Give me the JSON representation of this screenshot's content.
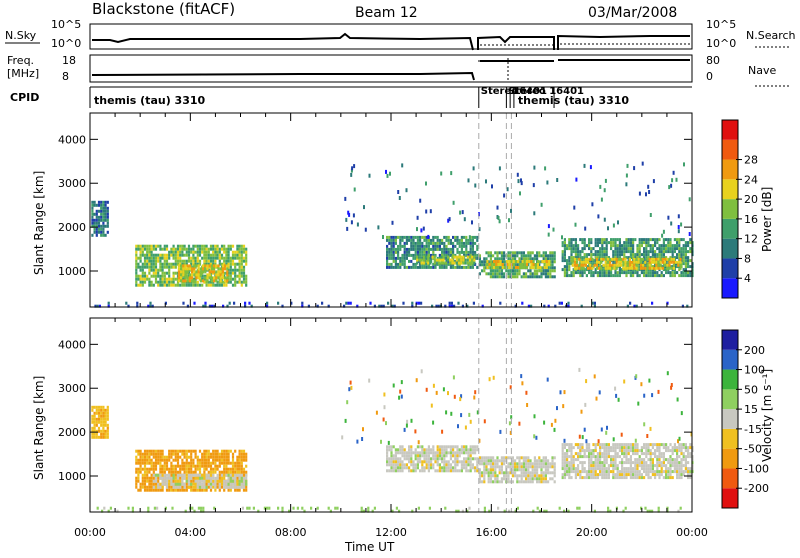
{
  "header": {
    "station": "Blackstone (fitACF)",
    "beam": "Beam 12",
    "date": "03/Mar/2008"
  },
  "strip_labels": {
    "nsky": "N.Sky",
    "freq_line1": "Freq.",
    "freq_line2": "[MHz]",
    "cpid": "CPID",
    "nsearch": "N.Search",
    "nave": "Nave",
    "nsky_ticks": [
      "10^5",
      "10^0"
    ],
    "nsearch_ticks": [
      "10^5",
      "10^0"
    ],
    "freq_ticks": [
      "18",
      "8"
    ],
    "nave_ticks": [
      "80",
      "0"
    ]
  },
  "cpid_segments": [
    {
      "label": "themis (tau) 3310",
      "start": 0.0,
      "end": 15.5
    },
    {
      "label": "Stereo",
      "start": 15.5,
      "end": 16.6
    },
    {
      "label": "Stereo 16401",
      "start": 16.6,
      "end": 16.75
    },
    {
      "label": "16401",
      "start": 16.75,
      "end": 16.9
    },
    {
      "label": "themis (tau) 3310",
      "start": 16.9,
      "end": 24.0
    }
  ],
  "colors": {
    "power_scale": [
      "#1a1aff",
      "#1f3fa8",
      "#2c7a7a",
      "#3f9f6b",
      "#7fbf3f",
      "#e8d21e",
      "#f09a10",
      "#f05a10",
      "#e01010"
    ],
    "velocity_scale": [
      "#e01010",
      "#f05a10",
      "#f09a10",
      "#f0c020",
      "#c8c8c0",
      "#8fd060",
      "#3cb43c",
      "#2a64c8",
      "#1f1fa0"
    ],
    "ground_scatter": "#b8b8b0"
  },
  "power_colorbar": {
    "label": "Power [dB]",
    "ticks": [
      "4",
      "8",
      "12",
      "16",
      "20",
      "24",
      "28"
    ]
  },
  "velocity_colorbar": {
    "label": "Velocity [m s⁻¹]",
    "ticks": [
      "-200",
      "-100",
      "-50",
      "-15",
      "15",
      "50",
      "100",
      "200"
    ]
  },
  "chart_data": [
    {
      "type": "heatmap",
      "panel": "power",
      "ylabel": "Slant Range [km]",
      "xlabel": "",
      "xlim": [
        0,
        24
      ],
      "ylim": [
        180,
        4600
      ],
      "yticks": [
        "1000",
        "2000",
        "3000",
        "4000"
      ],
      "xticks": [
        "00:00",
        "04:00",
        "08:00",
        "12:00",
        "16:00",
        "20:00",
        "00:00"
      ],
      "regions": [
        {
          "t0": 0.05,
          "t1": 0.7,
          "r0": 1800,
          "r1": 2600,
          "value": 10
        },
        {
          "t0": 1.8,
          "t1": 6.2,
          "r0": 650,
          "r1": 1600,
          "value": 17
        },
        {
          "t0": 3.5,
          "t1": 5.5,
          "r0": 800,
          "r1": 1150,
          "value": 22
        },
        {
          "t0": 11.8,
          "t1": 15.4,
          "r0": 1100,
          "r1": 1800,
          "value": 12
        },
        {
          "t0": 13.0,
          "t1": 15.3,
          "r0": 1150,
          "r1": 1350,
          "value": 19
        },
        {
          "t0": 15.5,
          "t1": 18.5,
          "r0": 850,
          "r1": 1450,
          "value": 14
        },
        {
          "t0": 15.8,
          "t1": 18.3,
          "r0": 1050,
          "r1": 1250,
          "value": 21
        },
        {
          "t0": 18.8,
          "t1": 24.0,
          "r0": 900,
          "r1": 1750,
          "value": 13
        },
        {
          "t0": 19.2,
          "t1": 23.5,
          "r0": 1050,
          "r1": 1300,
          "value": 22
        },
        {
          "t0": 0.0,
          "t1": 24.0,
          "r0": 200,
          "r1": 300,
          "value": 6
        }
      ]
    },
    {
      "type": "heatmap",
      "panel": "velocity",
      "ylabel": "Slant Range [km]",
      "xlabel": "Time UT",
      "xlim": [
        0,
        24
      ],
      "ylim": [
        180,
        4600
      ],
      "yticks": [
        "1000",
        "2000",
        "3000",
        "4000"
      ],
      "xticks": [
        "00:00",
        "04:00",
        "08:00",
        "12:00",
        "16:00",
        "20:00",
        "00:00"
      ],
      "regions": [
        {
          "t0": 0.05,
          "t1": 0.7,
          "r0": 1900,
          "r1": 2600,
          "value": -40
        },
        {
          "t0": 1.8,
          "t1": 6.2,
          "r0": 650,
          "r1": 1600,
          "value": -60
        },
        {
          "t0": 2.5,
          "t1": 6.2,
          "r0": 750,
          "r1": 1050,
          "value": 0
        },
        {
          "t0": 11.8,
          "t1": 15.4,
          "r0": 1150,
          "r1": 1700,
          "value": 0
        },
        {
          "t0": 15.5,
          "t1": 18.5,
          "r0": 900,
          "r1": 1450,
          "value": 0
        },
        {
          "t0": 18.8,
          "t1": 24.0,
          "r0": 950,
          "r1": 1750,
          "value": 0
        },
        {
          "t0": 0.0,
          "t1": 24.0,
          "r0": 200,
          "r1": 300,
          "value": 30
        }
      ]
    }
  ]
}
